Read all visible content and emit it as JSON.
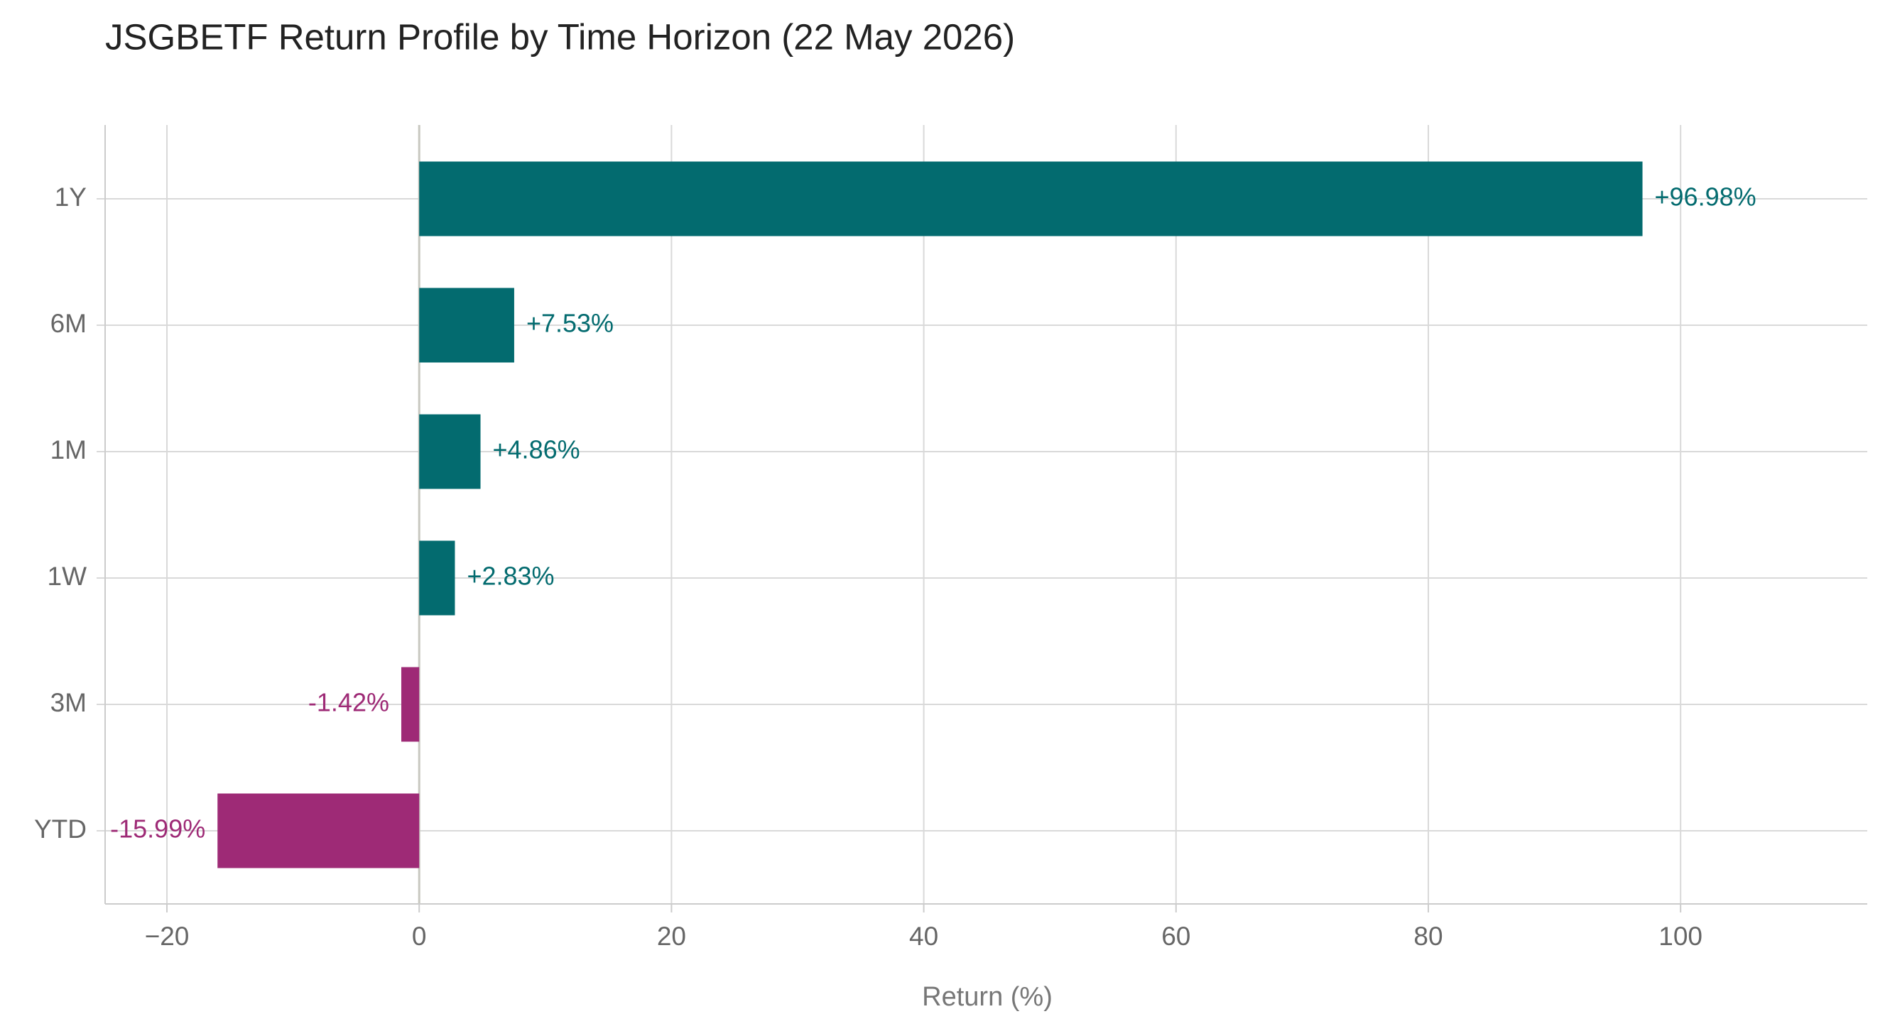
{
  "chart_data": {
    "type": "hbar",
    "title": "JSGBETF Return Profile by Time Horizon (22 May 2026)",
    "categories": [
      "1Y",
      "6M",
      "1M",
      "1W",
      "3M",
      "YTD"
    ],
    "values": [
      96.98,
      7.53,
      4.86,
      2.83,
      -1.42,
      -15.99
    ],
    "value_labels": [
      "+96.98%",
      "+7.53%",
      "+4.86%",
      "+2.83%",
      "-1.42%",
      "-15.99%"
    ],
    "positive_color": "#036b6f",
    "negative_color": "#9e2a76",
    "x_label": "Return (%)",
    "xlim": [
      -24.9,
      114.8
    ],
    "xticks": [
      {
        "value": -20,
        "label": "−20"
      },
      0,
      20,
      40,
      60,
      80,
      100
    ],
    "grid": true
  }
}
